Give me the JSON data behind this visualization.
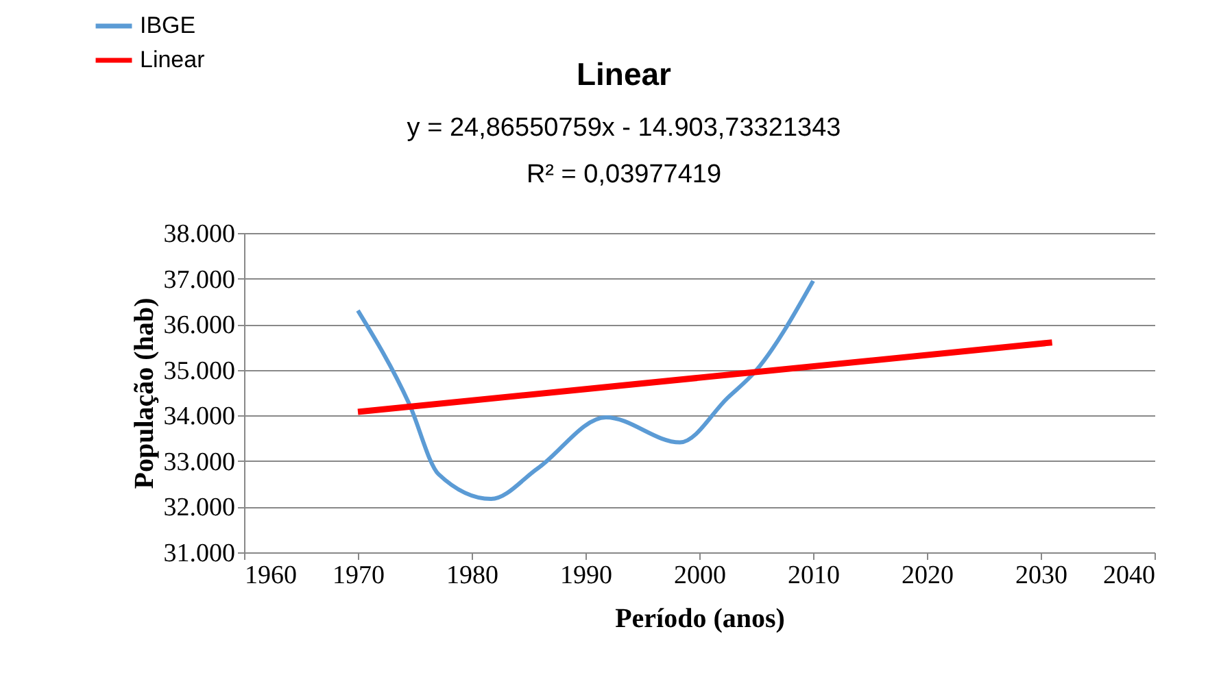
{
  "chart_data": {
    "type": "line",
    "title": "Linear",
    "annotations": [
      "y = 24,86550759x - 14.903,73321343",
      "R² = 0,03977419"
    ],
    "xlabel": "Período (anos)",
    "ylabel": "População (hab)",
    "series": [
      {
        "name": "IBGE",
        "color": "#5b9bd5",
        "x": [
          1970,
          1974.5,
          1977.1,
          1981.7,
          1985.8,
          1991.8,
          1998.3,
          2002.5,
          2004.9,
          2010
        ],
        "values": [
          36300,
          34260,
          32710,
          32170,
          32840,
          33960,
          33410,
          34390,
          34960,
          36950
        ]
      },
      {
        "name": "Linear",
        "color": "#ff0000",
        "x": [
          1970,
          2031
        ],
        "values": [
          34080,
          35600
        ]
      }
    ],
    "xlim": [
      1960,
      2040
    ],
    "xticks": [
      1960,
      1970,
      1980,
      1990,
      2000,
      2010,
      2020,
      2030,
      2040
    ],
    "ylim": [
      31000,
      38000
    ],
    "yticks": [
      {
        "value": 31000,
        "label": "31.000"
      },
      {
        "value": 32000,
        "label": "32.000"
      },
      {
        "value": 33000,
        "label": "33.000"
      },
      {
        "value": 34000,
        "label": "34.000"
      },
      {
        "value": 35000,
        "label": "35.000"
      },
      {
        "value": 36000,
        "label": "36.000"
      },
      {
        "value": 37000,
        "label": "37.000"
      },
      {
        "value": 38000,
        "label": "38.000"
      }
    ],
    "grid": "y",
    "legend": "top left",
    "marker": "none",
    "line_style": "solid"
  }
}
